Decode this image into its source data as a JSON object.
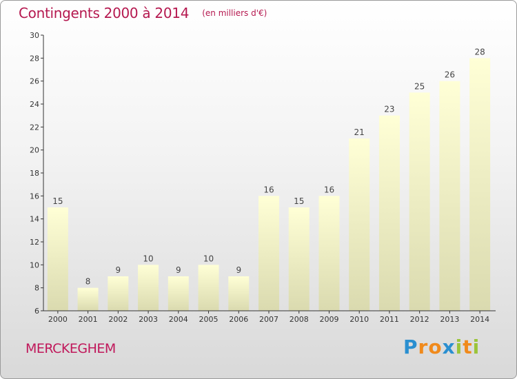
{
  "title": "Contingents 2000 à 2014",
  "subtitle": "(en milliers d'€)",
  "commune": "MERCKEGHEM",
  "logo": {
    "text": "Proxiti",
    "letters": [
      {
        "ch": "P",
        "color": "#2a8fd0"
      },
      {
        "ch": "r",
        "color": "#f08a1c"
      },
      {
        "ch": "o",
        "color": "#f08a1c"
      },
      {
        "ch": "x",
        "color": "#2a8fd0"
      },
      {
        "ch": "i",
        "color": "#9bc43a"
      },
      {
        "ch": "t",
        "color": "#f08a1c"
      },
      {
        "ch": "i",
        "color": "#9bc43a"
      }
    ]
  },
  "colors": {
    "title": "#b5184f",
    "bar_top": "#ffffd6",
    "bar_bottom": "#dadaaf",
    "axis": "#333333"
  },
  "chart_data": {
    "type": "bar",
    "title": "Contingents 2000 à 2014",
    "subtitle": "(en milliers d'€)",
    "categories": [
      "2000",
      "2001",
      "2002",
      "2003",
      "2004",
      "2005",
      "2006",
      "2007",
      "2008",
      "2009",
      "2010",
      "2011",
      "2012",
      "2013",
      "2014"
    ],
    "values": [
      15,
      8,
      9,
      10,
      9,
      10,
      9,
      16,
      15,
      16,
      21,
      23,
      25,
      26,
      28
    ],
    "ylim": [
      6,
      30
    ],
    "yticks": [
      6,
      8,
      10,
      12,
      14,
      16,
      18,
      20,
      22,
      24,
      26,
      28,
      30
    ],
    "grid": false,
    "legend": "none"
  }
}
